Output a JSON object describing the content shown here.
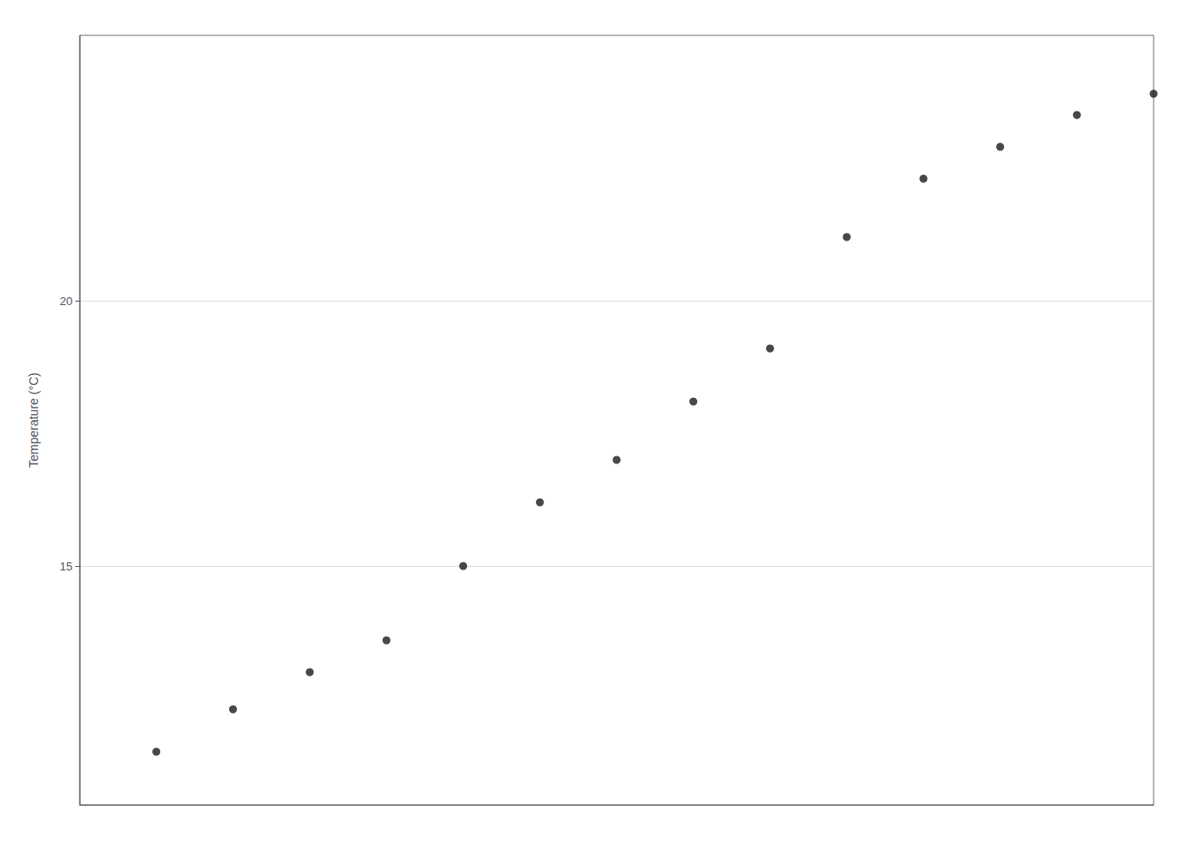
{
  "chart_data": {
    "type": "scatter",
    "x": [
      1,
      2,
      3,
      4,
      5,
      6,
      7,
      8,
      9,
      10,
      11,
      12,
      13,
      14
    ],
    "values": [
      11.5,
      12.3,
      13.0,
      13.6,
      15.0,
      16.2,
      17.0,
      18.1,
      19.1,
      21.2,
      22.3,
      22.9,
      23.5,
      23.9
    ],
    "ylabel": "Temperature (°C)",
    "xlim": [
      0.0,
      14.0
    ],
    "ylim": [
      10.5,
      25.0
    ],
    "yticks": [
      15,
      20
    ],
    "grid": true,
    "tick_labels": "y",
    "color": "#1A1A1A"
  }
}
